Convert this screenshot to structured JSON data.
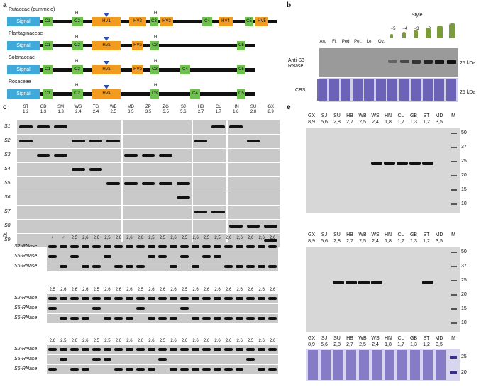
{
  "panel_a": {
    "label": "a",
    "families": [
      {
        "name": "Rutaceae (pummelo)",
        "segments": [
          "Signal",
          "C1",
          "C2",
          "HV1",
          "HV2",
          "C3",
          "HV3",
          "C4",
          "HV4",
          "C5",
          "HV5"
        ]
      },
      {
        "name": "Plantaginaceae",
        "segments": [
          "Signal",
          "C1",
          "C2",
          "HVa",
          "HVb",
          "C3",
          "C5"
        ]
      },
      {
        "name": "Solanaceae",
        "segments": [
          "Signal",
          "C1",
          "C2",
          "HVa",
          "HVb",
          "C3",
          "C4",
          "C5"
        ]
      },
      {
        "name": "Rosaceae",
        "segments": [
          "Signal",
          "C1",
          "C2",
          "HVa",
          "C3",
          "C4",
          "C5"
        ]
      }
    ],
    "h_mark": "H"
  },
  "panel_b": {
    "label": "b",
    "style_title": "Style",
    "lanes": [
      "An.",
      "Fi.",
      "Ped.",
      "Pet.",
      "Le.",
      "Ov.",
      "−5",
      "−4",
      "−3",
      "−2",
      "−1",
      "0"
    ],
    "blot_label": "Anti-S3-RNase",
    "stain_label": "CBS",
    "size_marker": "25 kDa"
  },
  "panel_c": {
    "label": "c",
    "lanes": [
      {
        "name": "ST",
        "g": "1,2"
      },
      {
        "name": "GB",
        "g": "1,3"
      },
      {
        "name": "SM",
        "g": "1,3"
      },
      {
        "name": "WS",
        "g": "2,4"
      },
      {
        "name": "TG",
        "g": "2,4"
      },
      {
        "name": "WB",
        "g": "2,5"
      },
      {
        "name": "MD",
        "g": "3,5"
      },
      {
        "name": "ZP",
        "g": "3,5"
      },
      {
        "name": "ZG",
        "g": "3,5"
      },
      {
        "name": "SJ",
        "g": "5,6"
      },
      {
        "name": "HB",
        "g": "2,7"
      },
      {
        "name": "CL",
        "g": "1,7"
      },
      {
        "name": "HN",
        "g": "1,8"
      },
      {
        "name": "SU",
        "g": "2,8"
      },
      {
        "name": "GX",
        "g": "8,9"
      }
    ],
    "rows": [
      "S1",
      "S2",
      "S3",
      "S4",
      "S5",
      "S6",
      "S7",
      "S8",
      "S9"
    ]
  },
  "panel_d": {
    "label": "d",
    "block1_header": [
      "♀",
      "♂",
      "2,5",
      "2,6",
      "2,6",
      "2,5",
      "2,6",
      "2,6",
      "2,6",
      "2,5",
      "2,5",
      "2,6",
      "2,5",
      "2,6",
      "2,5",
      "2,5",
      "2,6",
      "2,6",
      "2,6",
      "2,6",
      "2,6"
    ],
    "block2_header": [
      "2,5",
      "2,6",
      "2,6",
      "2,6",
      "2,5",
      "2,6",
      "2,6",
      "2,6",
      "2,5",
      "2,6",
      "2,6",
      "2,6",
      "2,5",
      "2,6",
      "2,6",
      "2,6",
      "2,6",
      "2,6",
      "2,6",
      "2,6",
      "2,6"
    ],
    "block3_header": [
      "2,6",
      "2,5",
      "2,6",
      "2,6",
      "2,5",
      "2,5",
      "2,6",
      "2,6",
      "2,6",
      "2,6",
      "2,5",
      "2,6",
      "2,6",
      "2,6",
      "2,6",
      "2,6",
      "2,6",
      "2,6",
      "2,5",
      "2,6",
      "2,6"
    ],
    "row_labels": [
      "S2-RNase",
      "S5-RNase",
      "S6-RNase"
    ]
  },
  "panel_e": {
    "label": "e",
    "lanes": [
      {
        "name": "GX",
        "g": "8,9"
      },
      {
        "name": "SJ",
        "g": "5,6"
      },
      {
        "name": "SU",
        "g": "2,8"
      },
      {
        "name": "HB",
        "g": "2,7"
      },
      {
        "name": "WB",
        "g": "2,5"
      },
      {
        "name": "WS",
        "g": "2,4"
      },
      {
        "name": "HN",
        "g": "1,8"
      },
      {
        "name": "CL",
        "g": "1,7"
      },
      {
        "name": "GB",
        "g": "1,3"
      },
      {
        "name": "ST",
        "g": "1,2"
      },
      {
        "name": "MD",
        "g": "3,5"
      }
    ],
    "marker_lane": "M",
    "markers_blot": [
      "50",
      "37",
      "25",
      "20",
      "15",
      "10"
    ],
    "markers_stain": [
      "25",
      "20"
    ]
  }
}
